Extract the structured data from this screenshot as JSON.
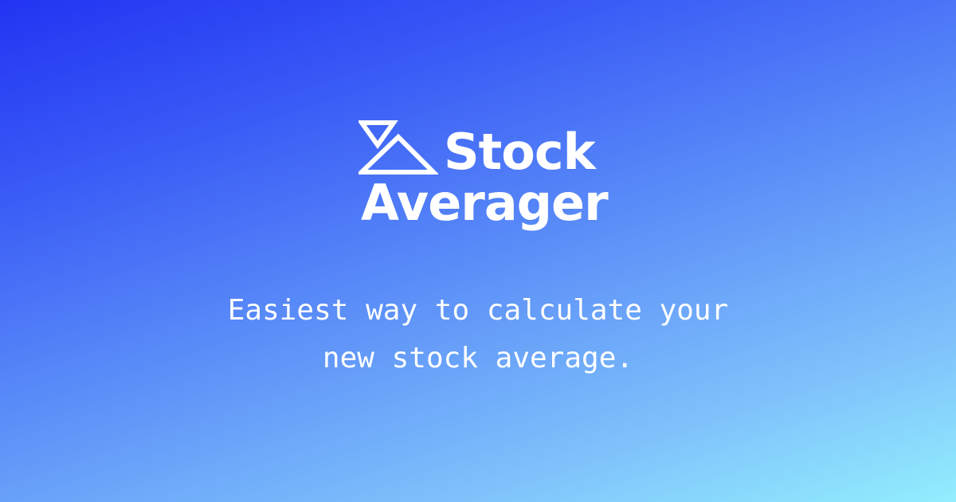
{
  "brand": {
    "name_line1": "Stock",
    "name_line2": "Averager",
    "logo_icon": "triangles-logo-icon"
  },
  "tagline": {
    "line1": "Easiest way to calculate your",
    "line2": "new stock average."
  },
  "colors": {
    "gradient_start": "#2234f2",
    "gradient_end": "#92eefd",
    "text": "#ffffff"
  }
}
